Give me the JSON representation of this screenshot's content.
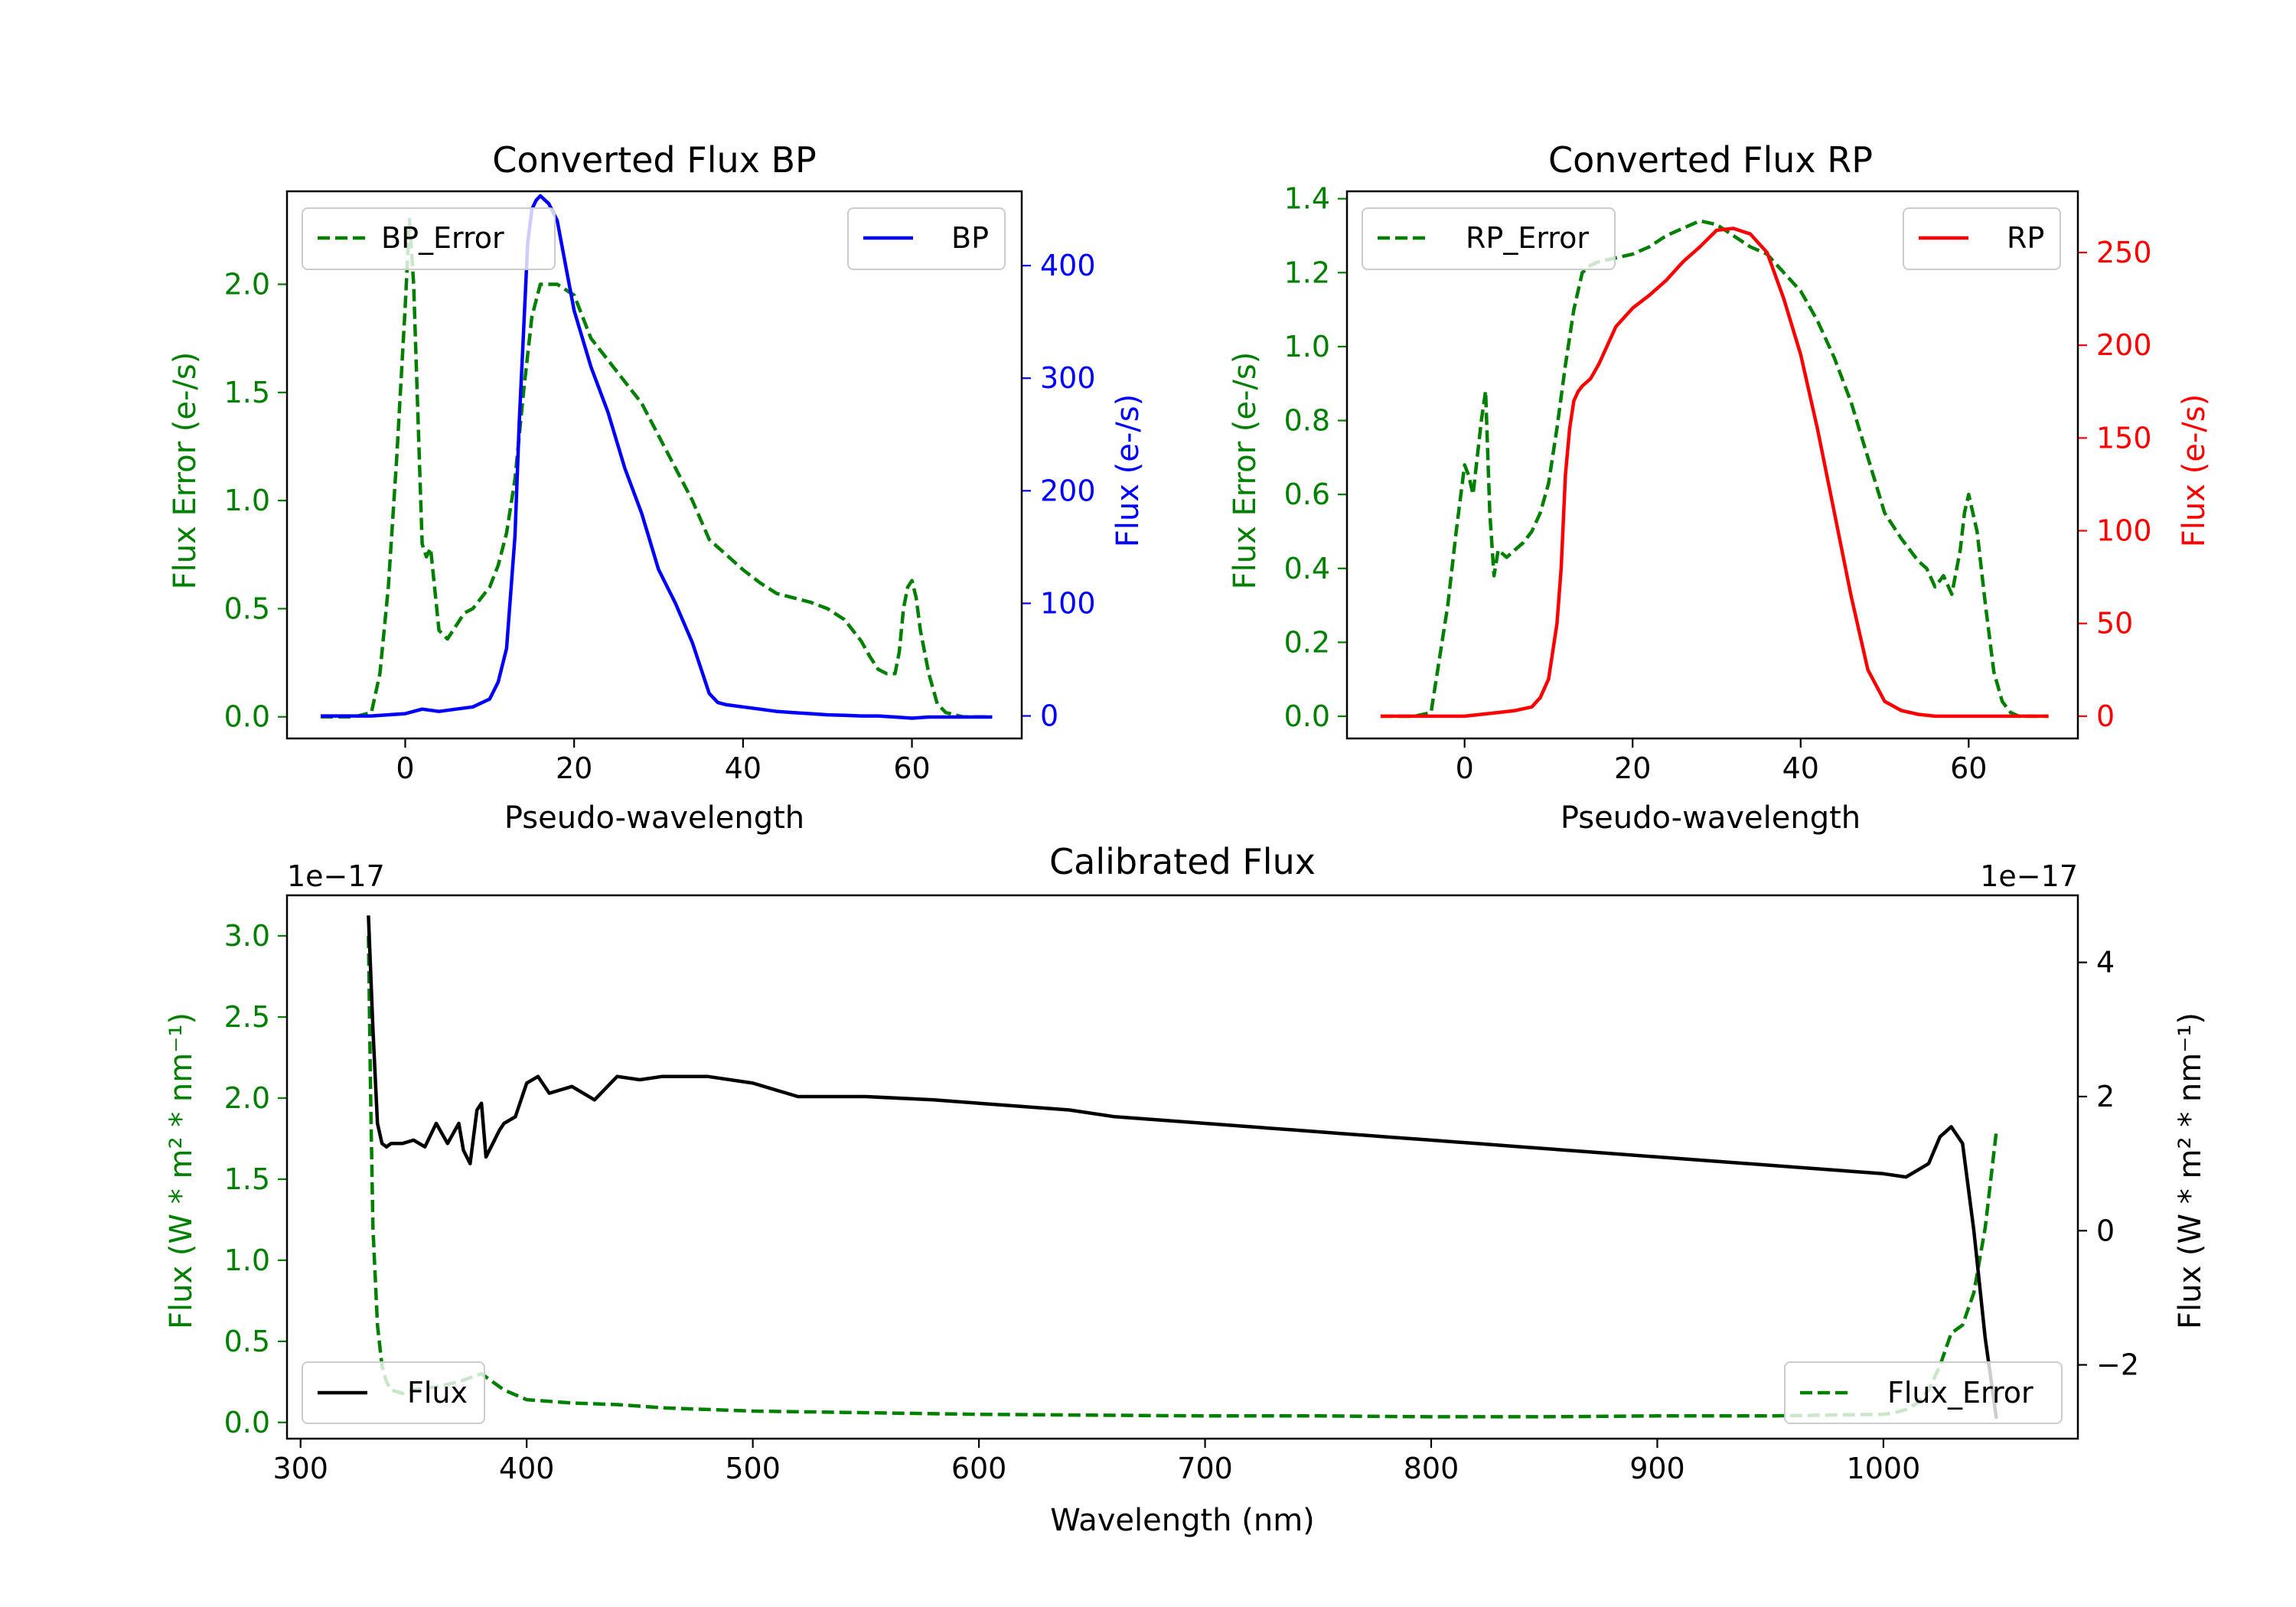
{
  "chart_data": [
    {
      "type": "line",
      "title": "Converted Flux BP",
      "xlabel": "Pseudo-wavelength",
      "ylabel_left": "Flux Error (e-/s)",
      "ylabel_right": "Flux (e-/s)",
      "xlim": [
        -14,
        73
      ],
      "ylim_left": [
        -0.1,
        2.43
      ],
      "ylim_right": [
        -20,
        466
      ],
      "xticks": [
        0,
        20,
        40,
        60
      ],
      "yticks_left": [
        "0.0",
        "0.5",
        "1.0",
        "1.5",
        "2.0"
      ],
      "yticks_right": [
        "0",
        "100",
        "200",
        "300",
        "400"
      ],
      "left_color": "#008000",
      "right_color": "#0000ff",
      "series": [
        {
          "name": "BP_Error",
          "axis": "left",
          "color": "#008000",
          "dash": true,
          "x": [
            -10,
            -6,
            -4,
            -3,
            -2,
            -1,
            0,
            0.5,
            1,
            1.5,
            2,
            2.5,
            3,
            4,
            5,
            6,
            7,
            8,
            9,
            10,
            11,
            12,
            13,
            14,
            15,
            16,
            18,
            20,
            21,
            22,
            24,
            26,
            28,
            30,
            32,
            34,
            36,
            38,
            40,
            42,
            44,
            46,
            48,
            50,
            52,
            54,
            55,
            56,
            57,
            58,
            58.5,
            59,
            59.5,
            60,
            60.5,
            61,
            62,
            63,
            64,
            65,
            66,
            68,
            69.5
          ],
          "y": [
            0,
            0,
            0.02,
            0.2,
            0.6,
            1.2,
            1.9,
            2.3,
            2.0,
            1.4,
            0.8,
            0.74,
            0.78,
            0.4,
            0.36,
            0.42,
            0.48,
            0.5,
            0.55,
            0.6,
            0.7,
            0.85,
            1.1,
            1.5,
            1.85,
            2.0,
            2.0,
            1.95,
            1.85,
            1.75,
            1.65,
            1.55,
            1.45,
            1.3,
            1.15,
            1.0,
            0.82,
            0.75,
            0.68,
            0.62,
            0.57,
            0.55,
            0.53,
            0.5,
            0.45,
            0.35,
            0.28,
            0.22,
            0.2,
            0.2,
            0.3,
            0.5,
            0.6,
            0.63,
            0.55,
            0.4,
            0.2,
            0.06,
            0.02,
            0.01,
            0,
            0,
            0
          ]
        },
        {
          "name": "BP",
          "axis": "right",
          "color": "#0000ff",
          "dash": false,
          "x": [
            -10,
            -4,
            0,
            2,
            4,
            6,
            8,
            10,
            11,
            12,
            13,
            13.5,
            14,
            14.5,
            15,
            15.5,
            16,
            17,
            18,
            19,
            20,
            22,
            24,
            26,
            28,
            30,
            32,
            34,
            36,
            37,
            38,
            40,
            42,
            44,
            46,
            48,
            50,
            52,
            54,
            56,
            58,
            60,
            62,
            64,
            66,
            68,
            69.5
          ],
          "y": [
            0,
            0,
            2,
            6,
            4,
            6,
            8,
            15,
            30,
            60,
            160,
            260,
            340,
            420,
            450,
            458,
            462,
            455,
            440,
            400,
            360,
            310,
            270,
            220,
            180,
            130,
            100,
            65,
            20,
            12,
            10,
            8,
            6,
            4,
            3,
            2,
            1,
            0.5,
            0,
            0,
            -1,
            -2,
            -1,
            -1,
            -1,
            -1,
            -1
          ]
        }
      ],
      "legend": [
        {
          "label": "BP_Error",
          "position": "upper-left"
        },
        {
          "label": "BP",
          "position": "upper-right"
        }
      ]
    },
    {
      "type": "line",
      "title": "Converted Flux RP",
      "xlabel": "Pseudo-wavelength",
      "ylabel_left": "Flux Error (e-/s)",
      "ylabel_right": "Flux (e-/s)",
      "xlim": [
        -14,
        73
      ],
      "ylim_left": [
        -0.06,
        1.42
      ],
      "ylim_right": [
        -12,
        283
      ],
      "xticks": [
        0,
        20,
        40,
        60
      ],
      "yticks_left": [
        "0.0",
        "0.2",
        "0.4",
        "0.6",
        "0.8",
        "1.0",
        "1.2",
        "1.4"
      ],
      "yticks_right": [
        "0",
        "50",
        "100",
        "150",
        "200",
        "250"
      ],
      "left_color": "#008000",
      "right_color": "#ff0000",
      "series": [
        {
          "name": "RP_Error",
          "axis": "left",
          "color": "#008000",
          "dash": true,
          "x": [
            -10,
            -6,
            -4,
            -2,
            -1,
            0,
            0.5,
            1,
            2,
            2.5,
            3,
            3.5,
            4,
            5,
            6,
            7,
            8,
            9,
            10,
            11,
            12,
            13,
            14,
            15,
            16,
            18,
            20,
            22,
            24,
            26,
            28,
            30,
            32,
            34,
            36,
            38,
            40,
            42,
            44,
            46,
            48,
            50,
            52,
            54,
            55,
            56,
            57,
            58,
            59,
            59.5,
            60,
            61,
            62,
            63,
            64,
            65,
            66,
            68,
            69.5
          ],
          "y": [
            0,
            0,
            0.01,
            0.3,
            0.5,
            0.68,
            0.65,
            0.6,
            0.8,
            0.88,
            0.55,
            0.38,
            0.45,
            0.43,
            0.45,
            0.47,
            0.5,
            0.55,
            0.63,
            0.78,
            0.95,
            1.1,
            1.2,
            1.22,
            1.23,
            1.24,
            1.25,
            1.27,
            1.3,
            1.32,
            1.34,
            1.33,
            1.3,
            1.27,
            1.25,
            1.2,
            1.15,
            1.07,
            0.97,
            0.85,
            0.7,
            0.55,
            0.48,
            0.42,
            0.4,
            0.35,
            0.38,
            0.33,
            0.45,
            0.55,
            0.6,
            0.5,
            0.3,
            0.12,
            0.04,
            0.01,
            0,
            0,
            0
          ]
        },
        {
          "name": "RP",
          "axis": "right",
          "color": "#ff0000",
          "dash": false,
          "x": [
            -10,
            -4,
            0,
            2,
            4,
            6,
            7,
            8,
            9,
            10,
            11,
            11.5,
            12,
            12.5,
            13,
            13.5,
            14,
            15,
            16,
            18,
            20,
            22,
            24,
            26,
            28,
            30,
            32,
            34,
            36,
            38,
            40,
            42,
            44,
            46,
            48,
            50,
            52,
            54,
            56,
            58,
            60,
            62,
            64,
            66,
            68,
            69.5
          ],
          "y": [
            0,
            0,
            0,
            1,
            2,
            3,
            4,
            5,
            10,
            20,
            50,
            80,
            130,
            155,
            170,
            175,
            178,
            182,
            190,
            210,
            220,
            227,
            235,
            245,
            253,
            262,
            263,
            260,
            250,
            225,
            195,
            155,
            110,
            65,
            25,
            8,
            3,
            1,
            0,
            0,
            0,
            0,
            0,
            0,
            0,
            0
          ]
        }
      ],
      "legend": [
        {
          "label": "RP_Error",
          "position": "upper-left"
        },
        {
          "label": "RP",
          "position": "upper-right"
        }
      ]
    },
    {
      "type": "line",
      "title": "Calibrated Flux",
      "xlabel": "Wavelength (nm)",
      "ylabel_left": "Flux (W * m² * nm⁻¹)",
      "ylabel_right": "Flux (W * m² * nm⁻¹)",
      "offset_left": "1e−17",
      "offset_right": "1e−17",
      "xlim": [
        294,
        1086
      ],
      "ylim_left": [
        -0.1,
        3.25
      ],
      "ylim_right": [
        -3.1,
        5.0
      ],
      "xticks": [
        300,
        400,
        500,
        600,
        700,
        800,
        900,
        1000
      ],
      "yticks_left": [
        "0.0",
        "0.5",
        "1.0",
        "1.5",
        "2.0",
        "2.5",
        "3.0"
      ],
      "yticks_right": [
        "−2",
        "0",
        "2",
        "4"
      ],
      "left_color": "#008000",
      "right_color": "#000000",
      "series": [
        {
          "name": "Flux_Error",
          "axis": "left",
          "color": "#008000",
          "dash": true,
          "x": [
            330,
            331,
            332,
            334,
            336,
            338,
            340,
            345,
            350,
            360,
            370,
            380,
            390,
            400,
            420,
            440,
            460,
            480,
            500,
            550,
            600,
            650,
            700,
            750,
            800,
            850,
            900,
            950,
            1000,
            1005,
            1010,
            1015,
            1020,
            1025,
            1030,
            1035,
            1040,
            1045,
            1050
          ],
          "y": [
            3.0,
            2.0,
            1.2,
            0.6,
            0.35,
            0.25,
            0.2,
            0.18,
            0.2,
            0.22,
            0.25,
            0.3,
            0.2,
            0.14,
            0.12,
            0.11,
            0.09,
            0.08,
            0.07,
            0.06,
            0.05,
            0.045,
            0.04,
            0.04,
            0.035,
            0.035,
            0.04,
            0.04,
            0.05,
            0.06,
            0.08,
            0.12,
            0.2,
            0.35,
            0.55,
            0.6,
            0.8,
            1.2,
            1.8
          ]
        },
        {
          "name": "Flux",
          "axis": "right",
          "color": "#000000",
          "dash": false,
          "x": [
            330,
            332,
            334,
            336,
            338,
            340,
            345,
            350,
            355,
            360,
            365,
            370,
            372,
            375,
            378,
            380,
            382,
            385,
            388,
            390,
            395,
            400,
            405,
            410,
            420,
            430,
            440,
            450,
            460,
            480,
            500,
            520,
            550,
            580,
            600,
            620,
            640,
            660,
            680,
            700,
            720,
            740,
            760,
            780,
            800,
            820,
            840,
            860,
            880,
            900,
            920,
            940,
            960,
            980,
            1000,
            1010,
            1020,
            1025,
            1030,
            1035,
            1040,
            1045,
            1050
          ],
          "y": [
            4.7,
            3.0,
            1.6,
            1.3,
            1.25,
            1.3,
            1.3,
            1.35,
            1.25,
            1.6,
            1.3,
            1.6,
            1.2,
            1.0,
            1.8,
            1.9,
            1.1,
            1.3,
            1.5,
            1.6,
            1.7,
            2.2,
            2.3,
            2.05,
            2.15,
            1.95,
            2.3,
            2.25,
            2.3,
            2.3,
            2.2,
            2.0,
            2.0,
            1.95,
            1.9,
            1.85,
            1.8,
            1.7,
            1.65,
            1.6,
            1.55,
            1.5,
            1.45,
            1.4,
            1.35,
            1.3,
            1.25,
            1.2,
            1.15,
            1.1,
            1.05,
            1.0,
            0.95,
            0.9,
            0.85,
            0.8,
            1.0,
            1.4,
            1.55,
            1.3,
            0.0,
            -1.6,
            -2.8
          ]
        }
      ],
      "legend": [
        {
          "label": "Flux",
          "position": "lower-left"
        },
        {
          "label": "Flux_Error",
          "position": "lower-right"
        }
      ]
    }
  ]
}
